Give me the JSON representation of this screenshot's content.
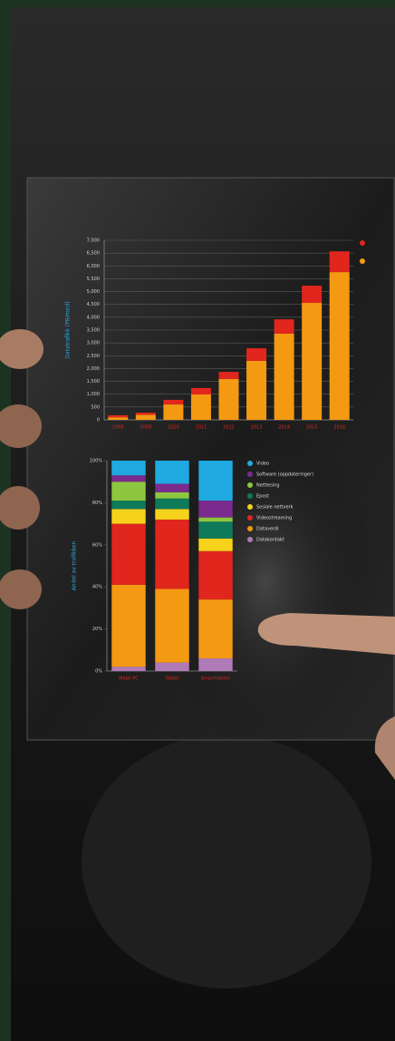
{
  "chart_data": [
    {
      "type": "bar",
      "stacked": true,
      "y_label": "Datatrafikk (PB/mnd)",
      "categories": [
        "2008",
        "2009",
        "2010",
        "2011",
        "2012",
        "2013",
        "2014",
        "2015",
        "2016"
      ],
      "series": [
        {
          "color": "#f39a12",
          "values": [
            100,
            200,
            600,
            990,
            1590,
            2300,
            3360,
            4560,
            5760
          ]
        },
        {
          "color": "#e0261d",
          "values": [
            80,
            80,
            180,
            250,
            280,
            490,
            560,
            670,
            810
          ]
        }
      ],
      "ylim": [
        0,
        7000
      ],
      "yticks": [
        0,
        500,
        {
          "value": 1000,
          "label": "1,000"
        },
        {
          "value": 1500,
          "label": "1,500"
        },
        {
          "value": 2000,
          "label": "2,000"
        },
        {
          "value": 2500,
          "label": "2,500"
        },
        {
          "value": 3000,
          "label": "3,000"
        },
        {
          "value": 3500,
          "label": "3,500"
        },
        {
          "value": 4000,
          "label": "4,000"
        },
        {
          "value": 4500,
          "label": "4,500"
        },
        {
          "value": 5000,
          "label": "5,000"
        },
        {
          "value": 5500,
          "label": "5,500"
        },
        {
          "value": 6000,
          "label": "6,000"
        },
        {
          "value": 6500,
          "label": "6,500"
        },
        {
          "value": 7000,
          "label": "7,000"
        }
      ],
      "grid": true
    },
    {
      "type": "bar",
      "stacked": true,
      "y_label": "Andel av trafikken",
      "categories": [
        "Mobil PC",
        "Tablet",
        "Smarttelefon"
      ],
      "series": [
        {
          "name": "Datakontakt",
          "color": "#b07ab8",
          "values": [
            2,
            4,
            6
          ]
        },
        {
          "name": "Dataverdi",
          "color": "#f39a12",
          "values": [
            39,
            35,
            28
          ]
        },
        {
          "name": "Videostreaming",
          "color": "#e0261d",
          "values": [
            29,
            33,
            23
          ]
        },
        {
          "name": "Sosiale nettverk",
          "color": "#f6d21b",
          "values": [
            7,
            5,
            6
          ]
        },
        {
          "name": "Epost",
          "color": "#0f7a5a",
          "values": [
            4,
            5,
            8
          ]
        },
        {
          "name": "Nettlesing",
          "color": "#8dc63f",
          "values": [
            9,
            3,
            2
          ]
        },
        {
          "name": "Software (oppdateringer)",
          "color": "#7b2a8e",
          "values": [
            3,
            4,
            8
          ]
        },
        {
          "name": "Video",
          "color": "#1fa9e1",
          "values": [
            7,
            11,
            19
          ]
        }
      ],
      "ylim": [
        0,
        100
      ],
      "yticks": [
        {
          "value": 0,
          "label": "0%"
        },
        {
          "value": 20,
          "label": "20%"
        },
        {
          "value": 40,
          "label": "40%"
        },
        {
          "value": 60,
          "label": "60%"
        },
        {
          "value": 80,
          "label": "80%"
        },
        {
          "value": 100,
          "label": "100%"
        }
      ],
      "grid": false
    }
  ]
}
